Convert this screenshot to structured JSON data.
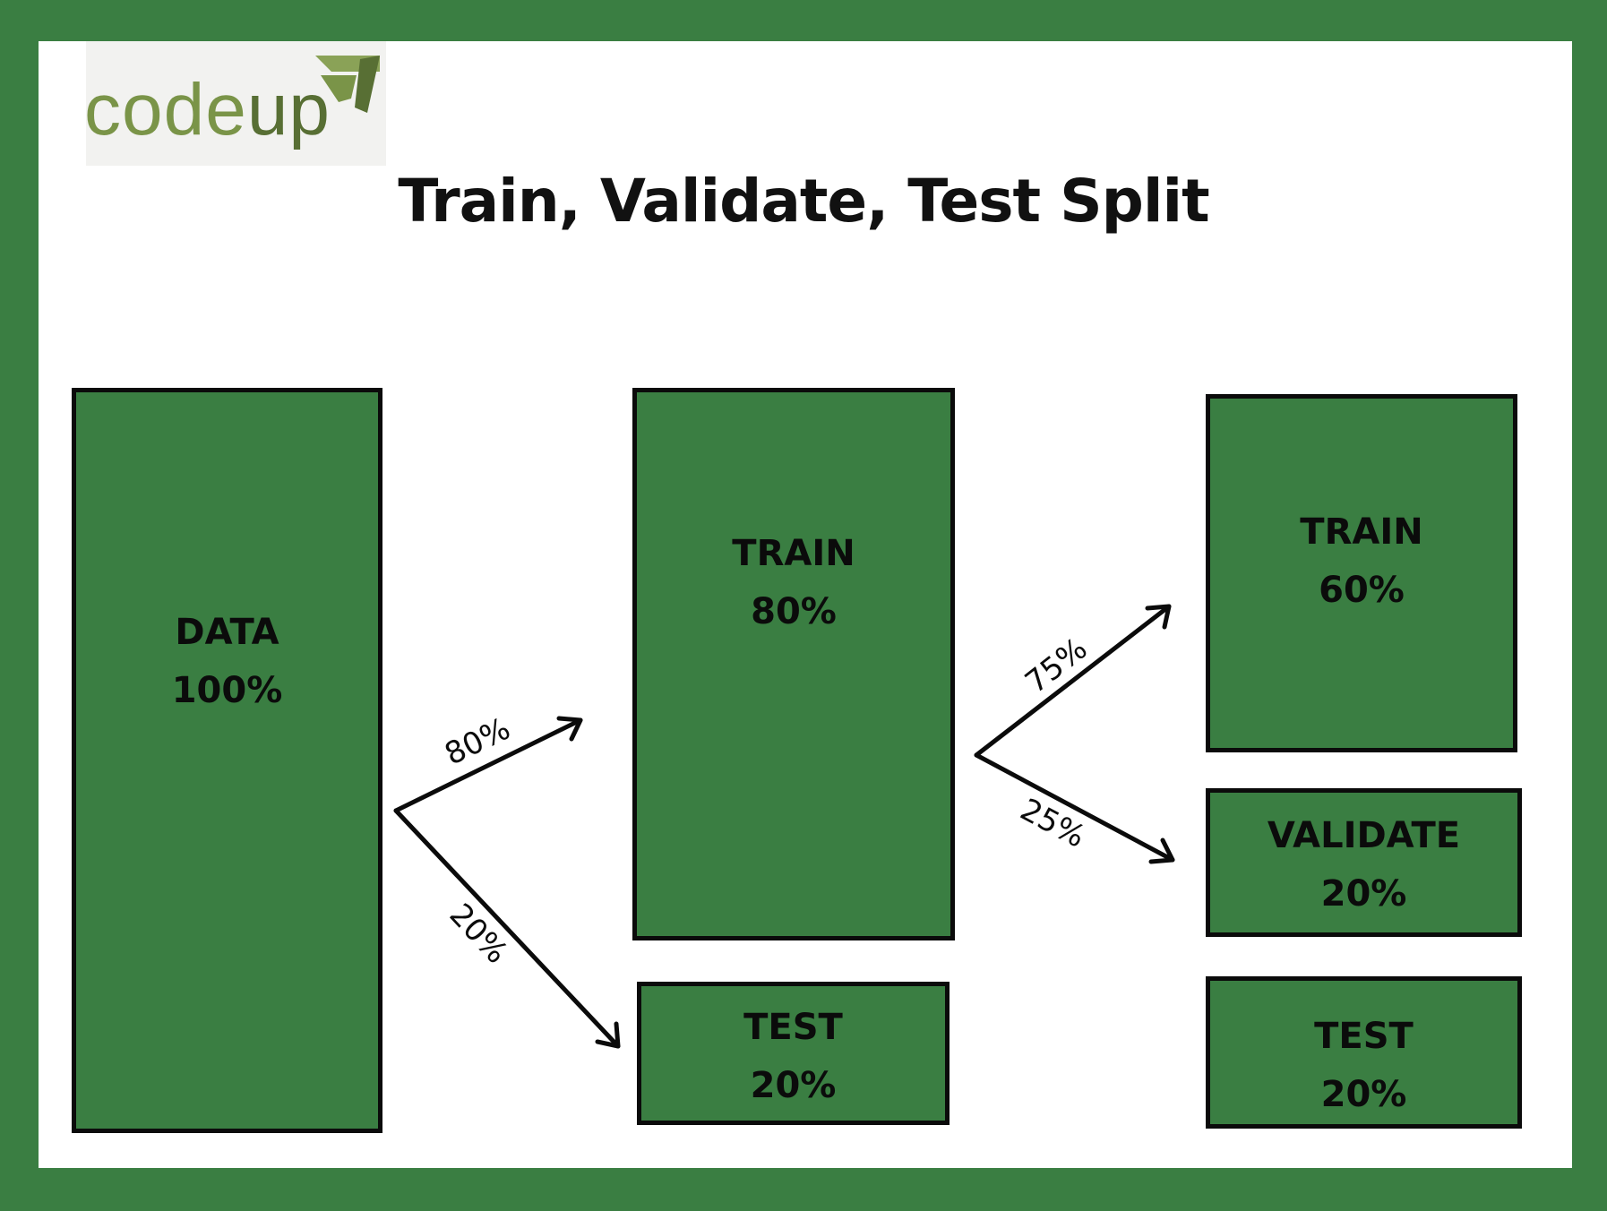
{
  "logo": {
    "text_part1": "code",
    "text_part2": "up",
    "mark": "codeup-logo-mark"
  },
  "title": "Train, Validate, Test Split",
  "colors": {
    "background": "#3a7e42",
    "box_fill": "#3a7e42",
    "frame": "#ffffff",
    "ink": "#0b0b0b",
    "logo_green": "#7a9448"
  },
  "stage1": {
    "name": "DATA",
    "percent": "100%"
  },
  "stage2": {
    "train": {
      "name": "TRAIN",
      "percent": "80%"
    },
    "test": {
      "name": "TEST",
      "percent": "20%"
    }
  },
  "stage3": {
    "train": {
      "name": "TRAIN",
      "percent": "60%"
    },
    "validate": {
      "name": "VALIDATE",
      "percent": "20%"
    },
    "test": {
      "name": "TEST",
      "percent": "20%"
    }
  },
  "splits": {
    "first_train": "80%",
    "first_test": "20%",
    "second_train": "75%",
    "second_validate": "25%"
  }
}
